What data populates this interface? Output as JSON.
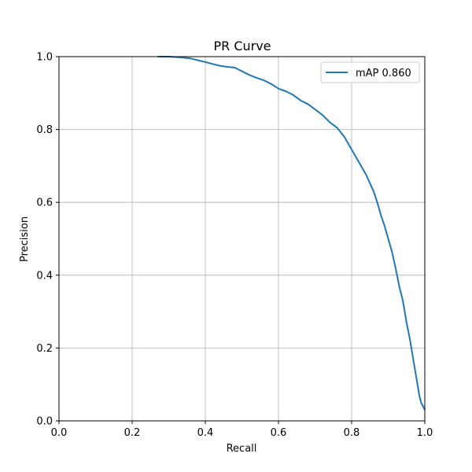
{
  "chart_data": {
    "type": "line",
    "title": "PR Curve",
    "xlabel": "Recall",
    "ylabel": "Precision",
    "xlim": [
      0.0,
      1.0
    ],
    "ylim": [
      0.0,
      1.0
    ],
    "xticks": [
      "0.0",
      "0.2",
      "0.4",
      "0.6",
      "0.8",
      "1.0"
    ],
    "yticks": [
      "0.0",
      "0.2",
      "0.4",
      "0.6",
      "0.8",
      "1.0"
    ],
    "grid": true,
    "legend_position": "top-right",
    "series": [
      {
        "name": "mAP 0.860",
        "color": "#1f77b4",
        "x": [
          0.27,
          0.3,
          0.33,
          0.36,
          0.38,
          0.4,
          0.42,
          0.44,
          0.46,
          0.48,
          0.5,
          0.52,
          0.54,
          0.56,
          0.58,
          0.6,
          0.62,
          0.64,
          0.66,
          0.68,
          0.7,
          0.72,
          0.74,
          0.76,
          0.78,
          0.8,
          0.82,
          0.84,
          0.86,
          0.87,
          0.88,
          0.89,
          0.9,
          0.91,
          0.92,
          0.93,
          0.94,
          0.95,
          0.96,
          0.965,
          0.97,
          0.975,
          0.98,
          0.985,
          0.99,
          0.995,
          1.0
        ],
        "y": [
          1.0,
          1.0,
          0.998,
          0.995,
          0.99,
          0.985,
          0.98,
          0.975,
          0.972,
          0.97,
          0.96,
          0.95,
          0.942,
          0.935,
          0.925,
          0.912,
          0.905,
          0.895,
          0.88,
          0.87,
          0.855,
          0.84,
          0.82,
          0.805,
          0.78,
          0.745,
          0.71,
          0.675,
          0.63,
          0.6,
          0.565,
          0.535,
          0.5,
          0.465,
          0.42,
          0.37,
          0.33,
          0.27,
          0.22,
          0.19,
          0.16,
          0.13,
          0.1,
          0.07,
          0.05,
          0.04,
          0.03
        ]
      }
    ]
  }
}
